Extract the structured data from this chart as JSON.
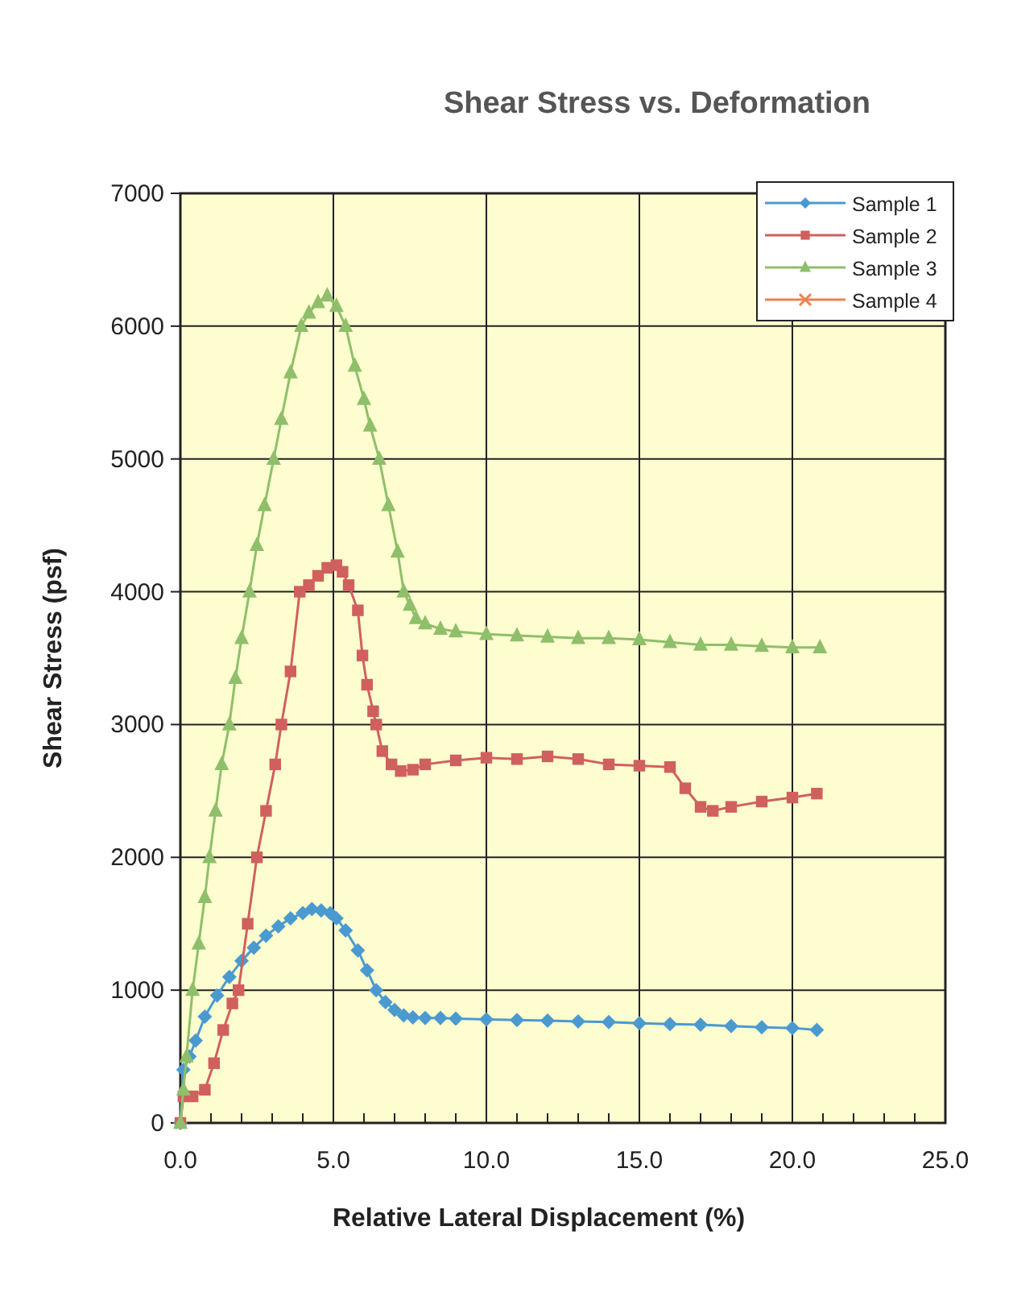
{
  "chart_data": {
    "type": "line",
    "title": "Shear Stress vs. Deformation",
    "xlabel": "Relative Lateral Displacement (%)",
    "ylabel": "Shear Stress (psf)",
    "xlim": [
      0,
      25
    ],
    "ylim": [
      0,
      7000
    ],
    "xticks": [
      {
        "value": 0,
        "label": "0.0"
      },
      {
        "value": 1,
        "label": null
      },
      {
        "value": 2,
        "label": null
      },
      {
        "value": 3,
        "label": null
      },
      {
        "value": 4,
        "label": null
      },
      {
        "value": 5,
        "label": "5.0"
      },
      {
        "value": 6,
        "label": null
      },
      {
        "value": 7,
        "label": null
      },
      {
        "value": 8,
        "label": null
      },
      {
        "value": 9,
        "label": null
      },
      {
        "value": 10,
        "label": "10.0"
      },
      {
        "value": 11,
        "label": null
      },
      {
        "value": 12,
        "label": null
      },
      {
        "value": 13,
        "label": null
      },
      {
        "value": 14,
        "label": null
      },
      {
        "value": 15,
        "label": "15.0"
      },
      {
        "value": 16,
        "label": null
      },
      {
        "value": 17,
        "label": null
      },
      {
        "value": 18,
        "label": null
      },
      {
        "value": 19,
        "label": null
      },
      {
        "value": 20,
        "label": "20.0"
      },
      {
        "value": 21,
        "label": null
      },
      {
        "value": 22,
        "label": null
      },
      {
        "value": 23,
        "label": null
      },
      {
        "value": 24,
        "label": null
      },
      {
        "value": 25,
        "label": "25.0"
      }
    ],
    "yticks": [
      0,
      1000,
      2000,
      3000,
      4000,
      5000,
      6000,
      7000
    ],
    "grid": true,
    "legend": "top right",
    "line_style": "solid",
    "series": [
      {
        "name": "Sample 1",
        "color": "#4a9ad0",
        "marker": "diamond",
        "x": [
          0,
          0.1,
          0.3,
          0.5,
          0.8,
          1.2,
          1.6,
          2.0,
          2.4,
          2.8,
          3.2,
          3.6,
          4.0,
          4.3,
          4.6,
          4.9,
          5.1,
          5.4,
          5.8,
          6.1,
          6.4,
          6.7,
          7.0,
          7.3,
          7.6,
          8.0,
          8.5,
          9,
          10,
          11,
          12,
          13,
          14,
          15,
          16,
          17,
          18,
          19,
          20,
          20.8
        ],
        "values": [
          0,
          400,
          500,
          620,
          800,
          960,
          1100,
          1220,
          1320,
          1410,
          1480,
          1540,
          1580,
          1610,
          1600,
          1580,
          1540,
          1450,
          1300,
          1150,
          1000,
          910,
          850,
          810,
          795,
          790,
          790,
          785,
          780,
          775,
          770,
          765,
          760,
          750,
          745,
          740,
          730,
          720,
          715,
          700
        ]
      },
      {
        "name": "Sample 2",
        "color": "#d0605e",
        "marker": "square",
        "x": [
          0,
          0.1,
          0.4,
          0.8,
          1.1,
          1.4,
          1.7,
          1.9,
          2.2,
          2.5,
          2.8,
          3.1,
          3.3,
          3.6,
          3.9,
          4.2,
          4.5,
          4.8,
          5.1,
          5.3,
          5.5,
          5.8,
          5.95,
          6.1,
          6.3,
          6.4,
          6.6,
          6.9,
          7.2,
          7.6,
          8,
          9,
          10,
          11,
          12,
          13,
          14,
          15,
          16,
          16.5,
          17,
          17.4,
          18,
          19,
          20,
          20.8
        ],
        "values": [
          0,
          200,
          200,
          250,
          450,
          700,
          900,
          1000,
          1500,
          2000,
          2350,
          2700,
          3000,
          3400,
          4000,
          4050,
          4120,
          4180,
          4200,
          4150,
          4050,
          3860,
          3520,
          3300,
          3100,
          3000,
          2800,
          2700,
          2650,
          2660,
          2700,
          2730,
          2750,
          2740,
          2760,
          2740,
          2700,
          2690,
          2680,
          2520,
          2380,
          2350,
          2380,
          2420,
          2450,
          2480
        ]
      },
      {
        "name": "Sample 3",
        "color": "#8fbf6a",
        "marker": "triangle",
        "x": [
          0,
          0.1,
          0.2,
          0.4,
          0.6,
          0.8,
          0.95,
          1.15,
          1.35,
          1.6,
          1.8,
          2.0,
          2.26,
          2.5,
          2.75,
          3.05,
          3.3,
          3.6,
          3.95,
          4.2,
          4.5,
          4.8,
          5.1,
          5.4,
          5.7,
          6.0,
          6.2,
          6.5,
          6.8,
          7.1,
          7.3,
          7.5,
          7.7,
          8.0,
          8.5,
          9,
          10,
          11,
          12,
          13,
          14,
          15,
          16,
          17,
          18,
          19,
          20,
          20.9
        ],
        "values": [
          0,
          250,
          500,
          1000,
          1350,
          1700,
          2000,
          2350,
          2700,
          3000,
          3350,
          3650,
          4000,
          4350,
          4650,
          5000,
          5300,
          5650,
          6000,
          6100,
          6180,
          6230,
          6150,
          6000,
          5700,
          5450,
          5250,
          5000,
          4650,
          4300,
          4000,
          3900,
          3800,
          3760,
          3720,
          3700,
          3680,
          3670,
          3660,
          3650,
          3650,
          3640,
          3620,
          3600,
          3600,
          3590,
          3580,
          3580
        ]
      },
      {
        "name": "Sample 4",
        "color": "#f08050",
        "marker": "cross"
      }
    ]
  }
}
